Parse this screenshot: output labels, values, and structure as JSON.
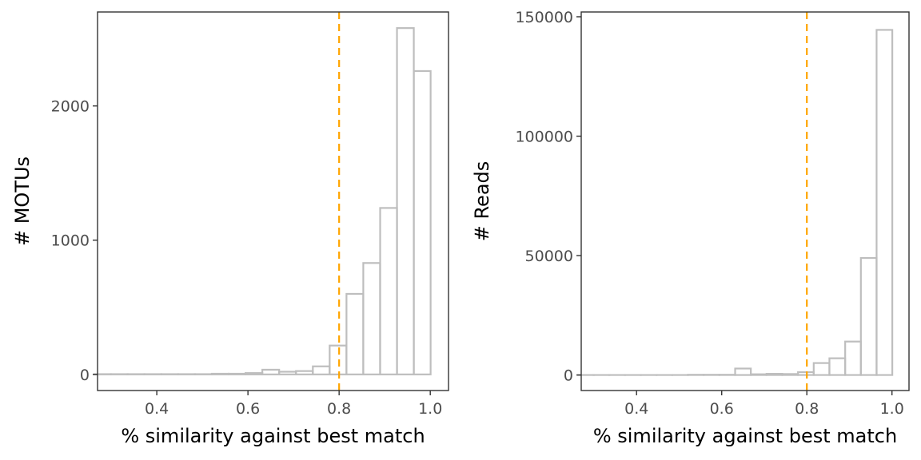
{
  "chart_data": [
    {
      "type": "bar",
      "subtype": "histogram",
      "xlabel": "% similarity against best match",
      "ylabel": "# MOTUs",
      "xlim": [
        0.27,
        1.04
      ],
      "ylim": [
        -120,
        2700
      ],
      "xticks": [
        "0.4",
        "0.6",
        "0.8",
        "1.0"
      ],
      "yticks": [
        "0",
        "1000",
        "2000"
      ],
      "bin_width": 0.0369,
      "bin_centers": [
        0.2808,
        0.3177,
        0.3546,
        0.3915,
        0.4285,
        0.4654,
        0.5023,
        0.5392,
        0.5762,
        0.6131,
        0.65,
        0.6869,
        0.7238,
        0.7608,
        0.7977,
        0.8346,
        0.8715,
        0.9085,
        0.9454,
        0.9823
      ],
      "values": [
        2,
        2,
        2,
        2,
        2,
        2,
        2,
        5,
        5,
        10,
        35,
        20,
        25,
        60,
        215,
        600,
        830,
        1240,
        2580,
        2260
      ],
      "threshold_line": {
        "x": 0.8,
        "color": "#ffa500",
        "style": "dashed"
      },
      "bar_color": "#bebebe",
      "grid": false
    },
    {
      "type": "bar",
      "subtype": "histogram",
      "xlabel": "% similarity against best match",
      "ylabel": "# Reads",
      "xlim": [
        0.27,
        1.04
      ],
      "ylim": [
        -6500,
        152000
      ],
      "xticks": [
        "0.4",
        "0.6",
        "0.8",
        "1.0"
      ],
      "yticks": [
        "0",
        "50000",
        "100000",
        "150000"
      ],
      "bin_width": 0.0369,
      "bin_centers": [
        0.2808,
        0.3177,
        0.3546,
        0.3915,
        0.4285,
        0.4654,
        0.5023,
        0.5392,
        0.5762,
        0.6131,
        0.65,
        0.6869,
        0.7238,
        0.7608,
        0.7977,
        0.8346,
        0.8715,
        0.9085,
        0.9454,
        0.9823
      ],
      "values": [
        0,
        0,
        0,
        0,
        0,
        0,
        0,
        100,
        100,
        100,
        2700,
        300,
        500,
        400,
        1200,
        5000,
        7000,
        14000,
        49000,
        144500
      ],
      "threshold_line": {
        "x": 0.8,
        "color": "#ffa500",
        "style": "dashed"
      },
      "bar_color": "#bebebe",
      "grid": false
    }
  ]
}
